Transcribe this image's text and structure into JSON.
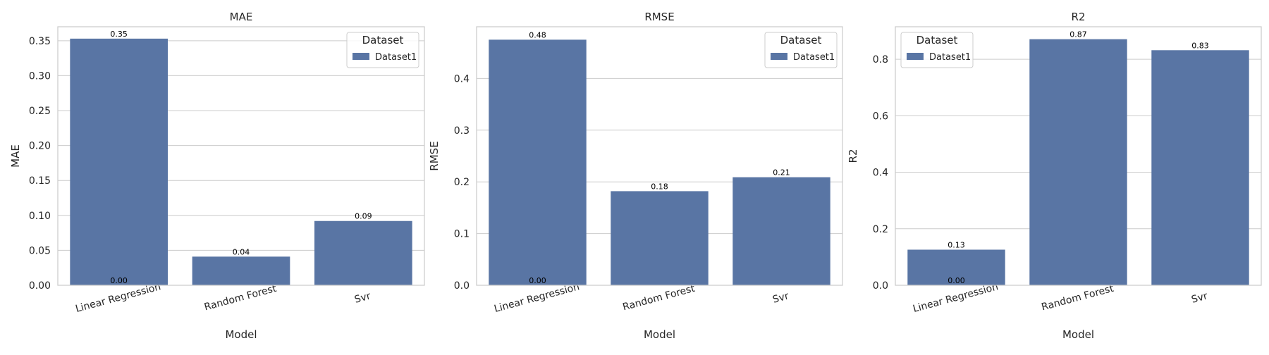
{
  "chart_data": [
    {
      "type": "bar",
      "title": "MAE",
      "xlabel": "Model",
      "ylabel": "MAE",
      "categories": [
        "Linear Regression",
        "Random Forest",
        "Svr"
      ],
      "series": [
        {
          "name": "Dataset1",
          "values": [
            0.353,
            0.041,
            0.092
          ]
        }
      ],
      "value_labels": [
        "0.35",
        "0.04",
        "0.09"
      ],
      "extra_label": "0.00",
      "ylim": [
        0,
        0.37
      ],
      "yticks": [
        0.0,
        0.05,
        0.1,
        0.15,
        0.2,
        0.25,
        0.3,
        0.35
      ],
      "ytick_labels": [
        "0.00",
        "0.05",
        "0.10",
        "0.15",
        "0.20",
        "0.25",
        "0.30",
        "0.35"
      ],
      "legend": {
        "title": "Dataset",
        "placement": "top-right",
        "entries": [
          "Dataset1"
        ]
      }
    },
    {
      "type": "bar",
      "title": "RMSE",
      "xlabel": "Model",
      "ylabel": "RMSE",
      "categories": [
        "Linear Regression",
        "Random Forest",
        "Svr"
      ],
      "series": [
        {
          "name": "Dataset1",
          "values": [
            0.475,
            0.182,
            0.209
          ]
        }
      ],
      "value_labels": [
        "0.48",
        "0.18",
        "0.21"
      ],
      "extra_label": "0.00",
      "ylim": [
        0,
        0.5
      ],
      "yticks": [
        0.0,
        0.1,
        0.2,
        0.3,
        0.4
      ],
      "ytick_labels": [
        "0.0",
        "0.1",
        "0.2",
        "0.3",
        "0.4"
      ],
      "legend": {
        "title": "Dataset",
        "placement": "top-right",
        "entries": [
          "Dataset1"
        ]
      }
    },
    {
      "type": "bar",
      "title": "R2",
      "xlabel": "Model",
      "ylabel": "R2",
      "categories": [
        "Linear Regression",
        "Random Forest",
        "Svr"
      ],
      "series": [
        {
          "name": "Dataset1",
          "values": [
            0.126,
            0.871,
            0.832
          ]
        }
      ],
      "value_labels": [
        "0.13",
        "0.87",
        "0.83"
      ],
      "extra_label": "0.00",
      "ylim": [
        0,
        0.915
      ],
      "yticks": [
        0.0,
        0.2,
        0.4,
        0.6,
        0.8
      ],
      "ytick_labels": [
        "0.0",
        "0.2",
        "0.4",
        "0.6",
        "0.8"
      ],
      "legend": {
        "title": "Dataset",
        "placement": "top-left",
        "entries": [
          "Dataset1"
        ]
      }
    }
  ],
  "colors": {
    "bar": "#5975a4",
    "grid": "#cccccc",
    "axes": "#cccccc",
    "text": "#262626",
    "value_label": "#000000"
  }
}
